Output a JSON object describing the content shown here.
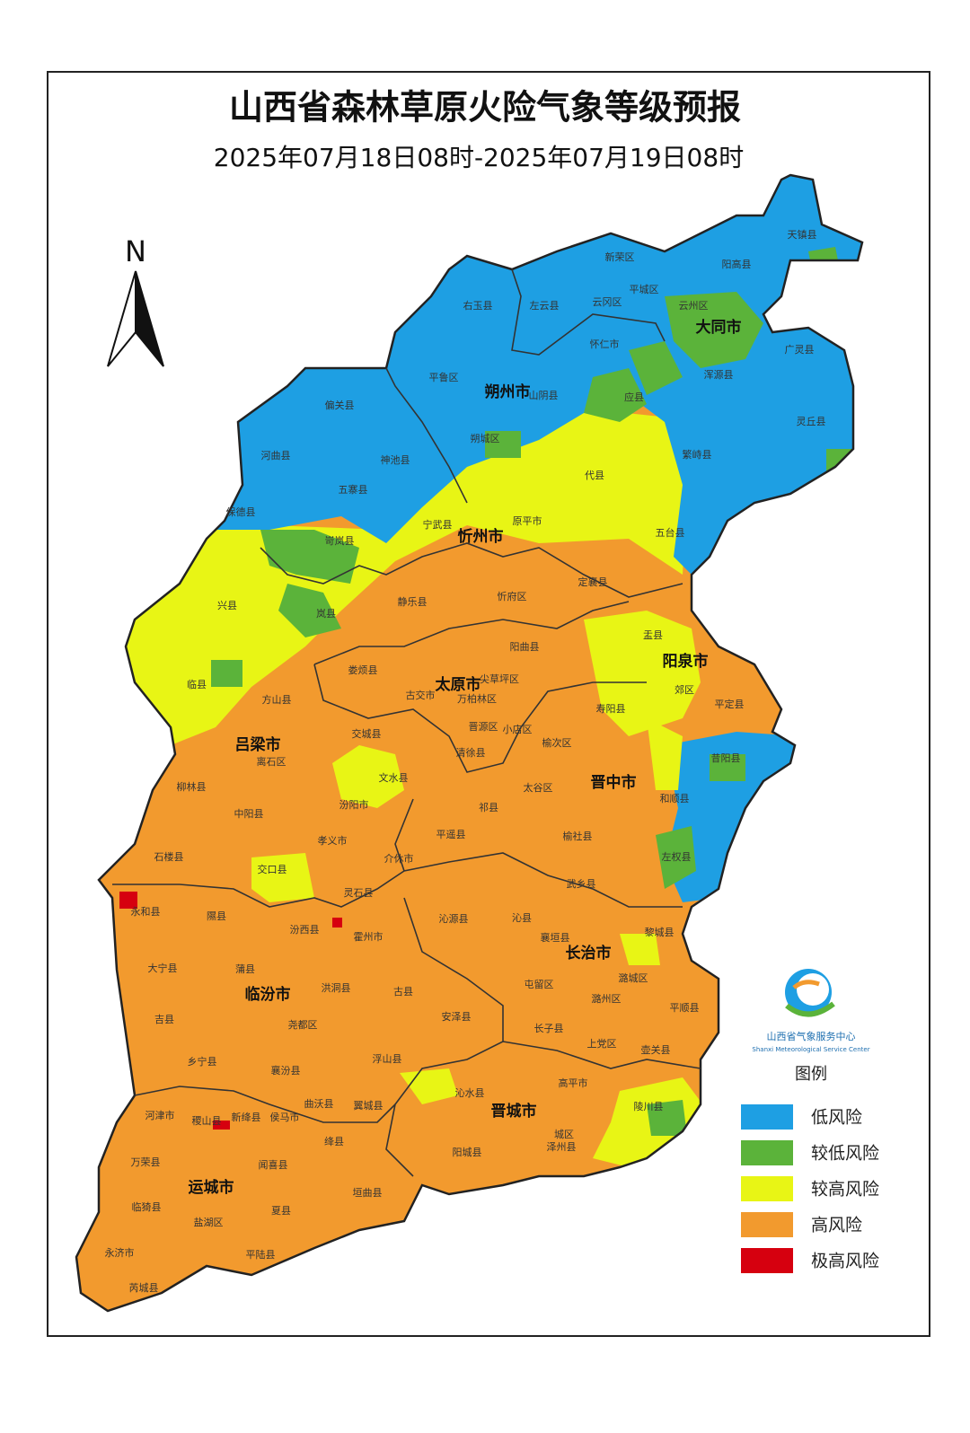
{
  "header": {
    "title": "山西省森林草原火险气象等级预报",
    "subtitle": "2025年07月18日08时-2025年07月19日08时"
  },
  "compass": {
    "label": "N"
  },
  "logo": {
    "name": "山西省气象服务中心",
    "english": "Shanxi Meteorological Service Center"
  },
  "legend": {
    "title": "图例",
    "items": [
      {
        "label": "低风险",
        "color": "#1e9fe3"
      },
      {
        "label": "较低风险",
        "color": "#5bb33a"
      },
      {
        "label": "较高风险",
        "color": "#e8f515"
      },
      {
        "label": "高风险",
        "color": "#f29a2e"
      },
      {
        "label": "极高风险",
        "color": "#d6000f"
      }
    ]
  },
  "cities": [
    "大同市",
    "朔州市",
    "忻州市",
    "太原市",
    "阳泉市",
    "吕梁市",
    "晋中市",
    "长治市",
    "临汾市",
    "晋城市",
    "运城市"
  ],
  "counties": [
    "天镇县",
    "阳高县",
    "新荣区",
    "平城区",
    "云州区",
    "广灵县",
    "浑源县",
    "灵丘县",
    "右玉县",
    "左云县",
    "云冈区",
    "怀仁市",
    "山阴县",
    "应县",
    "平鲁区",
    "朔城区",
    "繁峙县",
    "偏关县",
    "河曲县",
    "神池县",
    "五寨县",
    "保德县",
    "宁武县",
    "代县",
    "原平市",
    "五台县",
    "岢岚县",
    "静乐县",
    "忻府区",
    "定襄县",
    "兴县",
    "岚县",
    "阳曲县",
    "盂县",
    "临县",
    "娄烦县",
    "古交市",
    "万柏林区",
    "尖草坪区",
    "晋源区",
    "小店区",
    "清徐县",
    "方山县",
    "离石区",
    "交城县",
    "文水县",
    "寿阳县",
    "平定县",
    "郊区",
    "昔阳县",
    "榆次区",
    "柳林县",
    "中阳县",
    "汾阳市",
    "太谷区",
    "和顺县",
    "祁县",
    "孝义市",
    "平遥县",
    "榆社县",
    "左权县",
    "石楼县",
    "介休市",
    "交口县",
    "武乡县",
    "灵石县",
    "永和县",
    "隰县",
    "汾西县",
    "霍州市",
    "沁源县",
    "沁县",
    "黎城县",
    "襄垣县",
    "大宁县",
    "蒲县",
    "潞城区",
    "屯留区",
    "洪洞县",
    "古县",
    "安泽县",
    "潞州区",
    "平顺县",
    "吉县",
    "尧都区",
    "长子县",
    "上党区",
    "壶关县",
    "乡宁县",
    "襄汾县",
    "浮山县",
    "高平市",
    "陵川县",
    "沁水县",
    "曲沃县",
    "翼城县",
    "河津市",
    "稷山县",
    "新绛县",
    "侯马市",
    "绛县",
    "万荣县",
    "闻喜县",
    "阳城县",
    "泽州县",
    "城区",
    "垣曲县",
    "临猗县",
    "夏县",
    "盐湖区",
    "永济市",
    "平陆县",
    "芮城县"
  ]
}
